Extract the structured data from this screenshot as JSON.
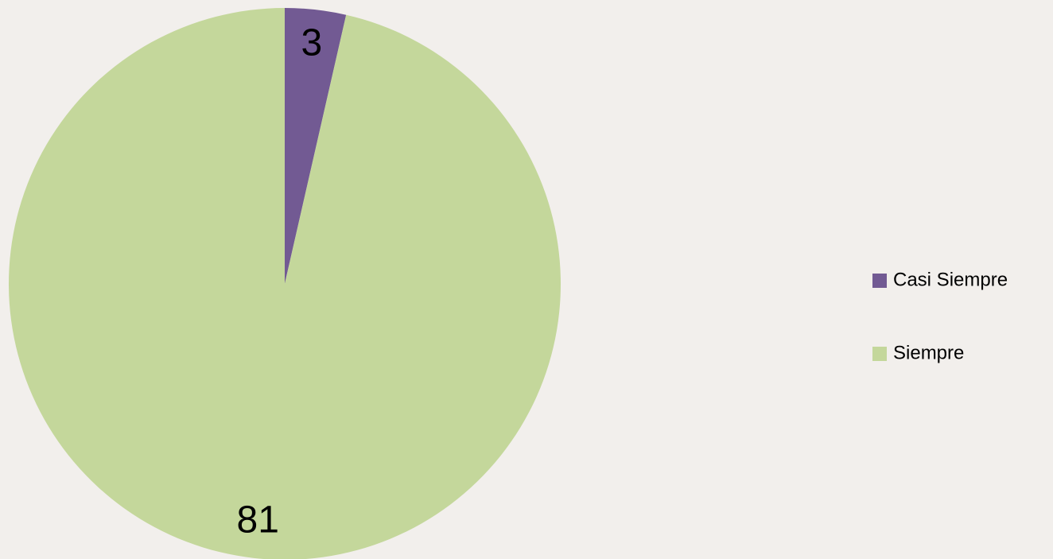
{
  "chart_data": {
    "type": "pie",
    "categories": [
      "Casi Siempre",
      "Siempre"
    ],
    "values": [
      3,
      81
    ],
    "colors": [
      "#725a93",
      "#c4d79b"
    ],
    "legend": "right"
  }
}
